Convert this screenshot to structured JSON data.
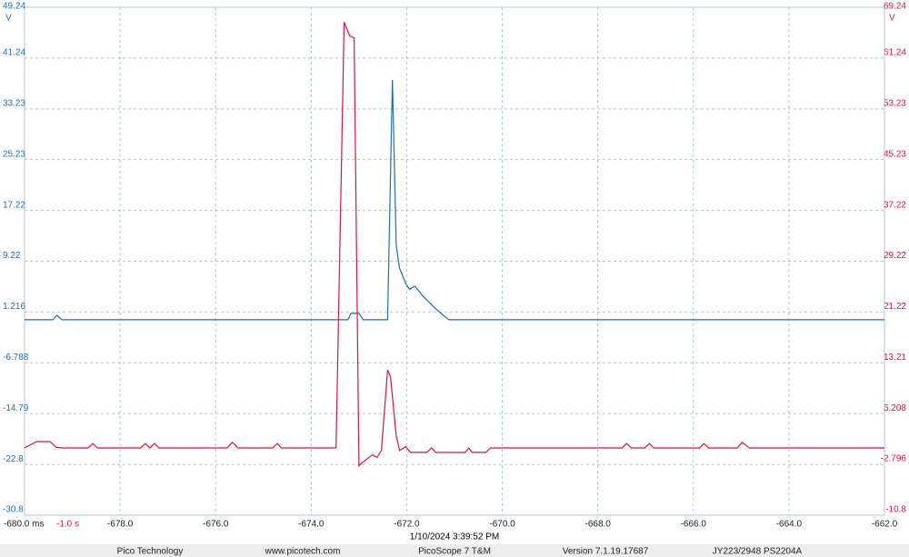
{
  "chart_data": {
    "type": "line",
    "xlim": [
      -680,
      -662
    ],
    "xticks": [
      {
        "value": -680,
        "label": "-680.0 ms"
      },
      {
        "value": -678,
        "label": "-678.0"
      },
      {
        "value": -676,
        "label": "-676.0"
      },
      {
        "value": -674,
        "label": "-674.0"
      },
      {
        "value": -672,
        "label": "-672.0"
      },
      {
        "value": -670,
        "label": "-670.0"
      },
      {
        "value": -668,
        "label": "-668.0"
      },
      {
        "value": -666,
        "label": "-666.0"
      },
      {
        "value": -664,
        "label": "-664.0"
      },
      {
        "value": -662,
        "label": "-662.0"
      }
    ],
    "annotation": "-1.0 s",
    "ylim": [
      -30.8,
      49.24
    ],
    "yticks": [
      49.24,
      41.24,
      33.23,
      25.23,
      17.22,
      9.22,
      1.216,
      -6.788,
      -14.79,
      -22.8,
      -30.8
    ],
    "y_unit": "V",
    "y2lim": [
      -10.8,
      69.24
    ],
    "y2ticks": [
      69.24,
      61.24,
      53.23,
      45.23,
      37.22,
      29.22,
      21.22,
      13.21,
      5.208,
      -2.796,
      -10.8
    ],
    "y2_unit": "V",
    "y_color": "#1f6ea8",
    "y2_color": "#d2153f",
    "grid": true,
    "series": [
      {
        "color": "#1f6ea8",
        "axis": "y",
        "x": [
          -680.0,
          -679.41,
          -679.32,
          -679.22,
          -673.23,
          -673.17,
          -673.0,
          -672.91,
          -672.4,
          -672.3,
          -672.22,
          -672.15,
          -672.02,
          -671.94,
          -671.83,
          -671.67,
          -671.39,
          -671.12,
          -662.0
        ],
        "values": [
          0.0,
          0.0,
          0.7,
          0.0,
          0.0,
          1.0,
          1.0,
          0.0,
          0.0,
          37.8,
          11.7,
          8.1,
          5.7,
          4.8,
          5.3,
          3.8,
          1.7,
          0.0,
          0.0
        ]
      },
      {
        "color": "#d2153f",
        "axis": "y2",
        "x": [
          -680.0,
          -679.75,
          -679.47,
          -679.33,
          -679.22,
          -678.67,
          -678.57,
          -678.48,
          -677.57,
          -677.47,
          -677.38,
          -677.28,
          -677.19,
          -675.76,
          -675.65,
          -675.53,
          -674.81,
          -674.71,
          -674.62,
          -673.48,
          -673.31,
          -673.19,
          -673.1,
          -673.0,
          -672.91,
          -672.72,
          -672.62,
          -672.53,
          -672.4,
          -672.34,
          -672.22,
          -672.15,
          -672.02,
          -671.92,
          -671.58,
          -671.48,
          -671.39,
          -670.78,
          -670.7,
          -670.63,
          -670.34,
          -670.25,
          -667.49,
          -667.4,
          -667.3,
          -667.02,
          -666.92,
          -666.83,
          -665.87,
          -665.78,
          -665.68,
          -665.08,
          -664.98,
          -664.83,
          -662.0
        ],
        "values": [
          -0.2,
          0.8,
          0.8,
          -0.1,
          -0.2,
          -0.2,
          0.5,
          -0.2,
          -0.2,
          0.5,
          -0.2,
          0.5,
          -0.2,
          -0.2,
          0.7,
          -0.2,
          -0.2,
          0.5,
          -0.2,
          -0.2,
          66.9,
          64.7,
          64.4,
          -3.0,
          -2.4,
          -1.3,
          -1.7,
          -0.6,
          12.1,
          11.0,
          1.7,
          -0.6,
          0.0,
          -0.9,
          -0.9,
          -0.2,
          -0.9,
          -0.9,
          -0.2,
          -0.9,
          -0.9,
          -0.2,
          -0.2,
          0.5,
          -0.2,
          -0.2,
          0.5,
          -0.2,
          -0.2,
          0.5,
          -0.2,
          -0.2,
          0.7,
          -0.2,
          -0.2
        ]
      }
    ]
  },
  "timestamp": "1/10/2024 3:39:52 PM",
  "footer": [
    "Pico Technology",
    "www.picotech.com",
    "PicoScope 7 T&M",
    "Version 7.1.19.17687",
    "JY223/2948 PS2204A"
  ]
}
